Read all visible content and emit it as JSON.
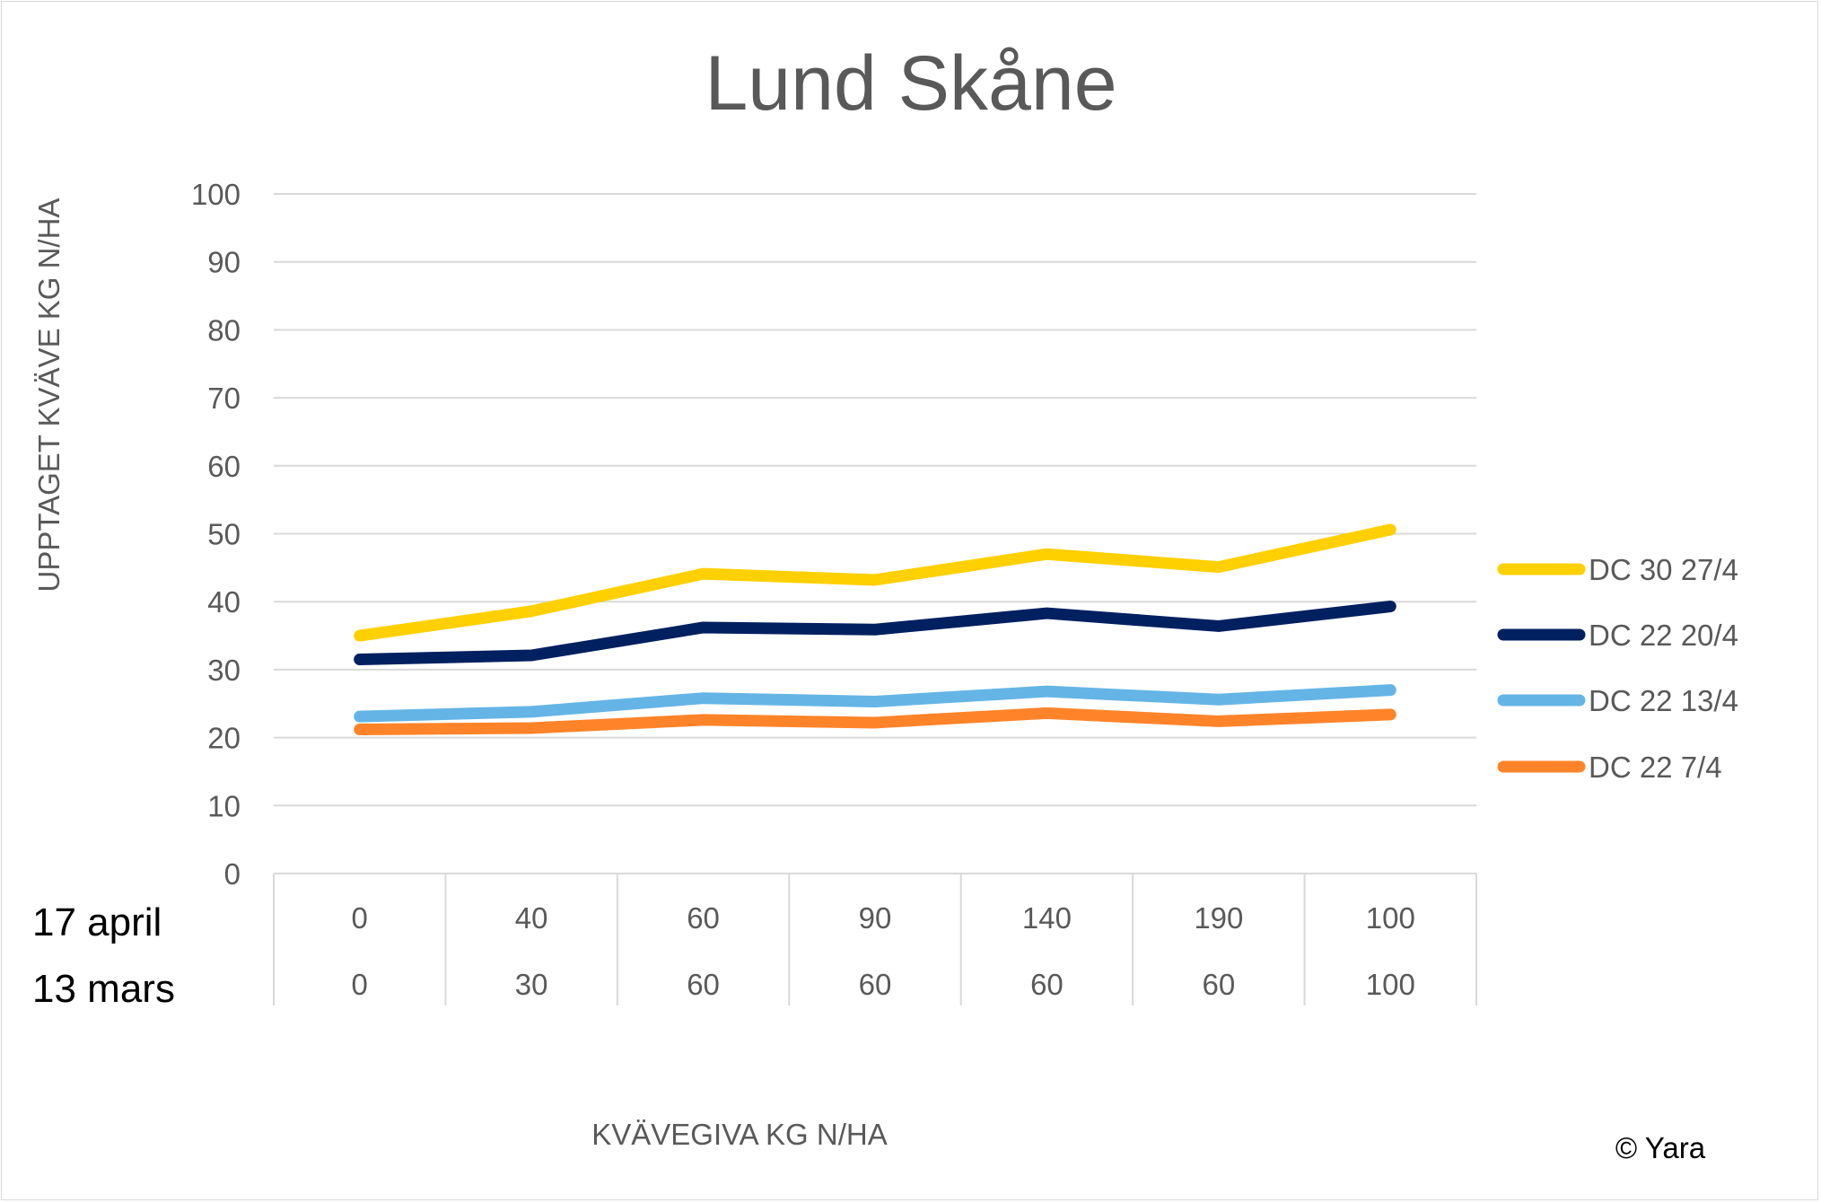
{
  "chart_data": {
    "type": "line",
    "title": "Lund Skåne",
    "xlabel": "KVÄVEGIVA  KG N/HA",
    "ylabel": "UPPTAGET KVÄVE KG N/HA",
    "ylim": [
      0,
      100
    ],
    "yticks": [
      0,
      10,
      20,
      30,
      40,
      50,
      60,
      70,
      80,
      90,
      100
    ],
    "grid": true,
    "legend_placement": "right",
    "category_rows": [
      {
        "label": "17 april",
        "values": [
          "0",
          "40",
          "60",
          "90",
          "140",
          "190",
          "100"
        ]
      },
      {
        "label": "13 mars",
        "values": [
          "0",
          "30",
          "60",
          "60",
          "60",
          "60",
          "100"
        ]
      }
    ],
    "series": [
      {
        "name": "DC 30 27/4",
        "color": "#FFD000",
        "values": [
          35.0,
          38.6,
          44.1,
          43.2,
          47.0,
          45.1,
          50.6
        ]
      },
      {
        "name": "DC 22 20/4",
        "color": "#002060",
        "values": [
          31.5,
          32.1,
          36.2,
          35.9,
          38.3,
          36.4,
          39.3
        ]
      },
      {
        "name": "DC 22 13/4",
        "color": "#64B5E6",
        "values": [
          23.1,
          23.8,
          25.8,
          25.3,
          26.8,
          25.6,
          27.0
        ]
      },
      {
        "name": "DC 22 7/4",
        "color": "#FF8429",
        "values": [
          21.2,
          21.4,
          22.6,
          22.2,
          23.6,
          22.4,
          23.4
        ]
      }
    ]
  },
  "copyright": "© Yara"
}
